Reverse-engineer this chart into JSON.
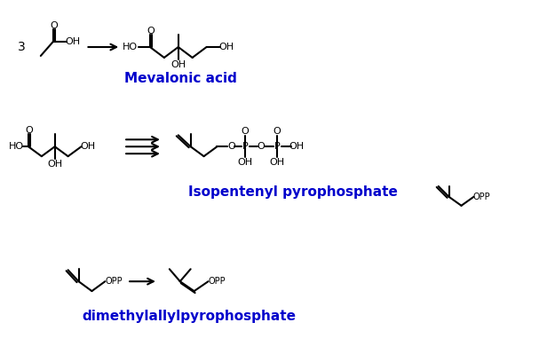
{
  "background_color": "#ffffff",
  "text_color_blue": "#0000cc",
  "text_color_black": "#000000",
  "figsize": [
    6.16,
    3.99
  ],
  "dpi": 100,
  "label_mevalonic": "Mevalonic acid",
  "label_isopentenyl": "Isopentenyl pyrophosphate",
  "label_dmapp": "dimethylallylpyrophosphate",
  "label_three": "3",
  "label_fontsize": 11,
  "chem_fontsize": 8
}
